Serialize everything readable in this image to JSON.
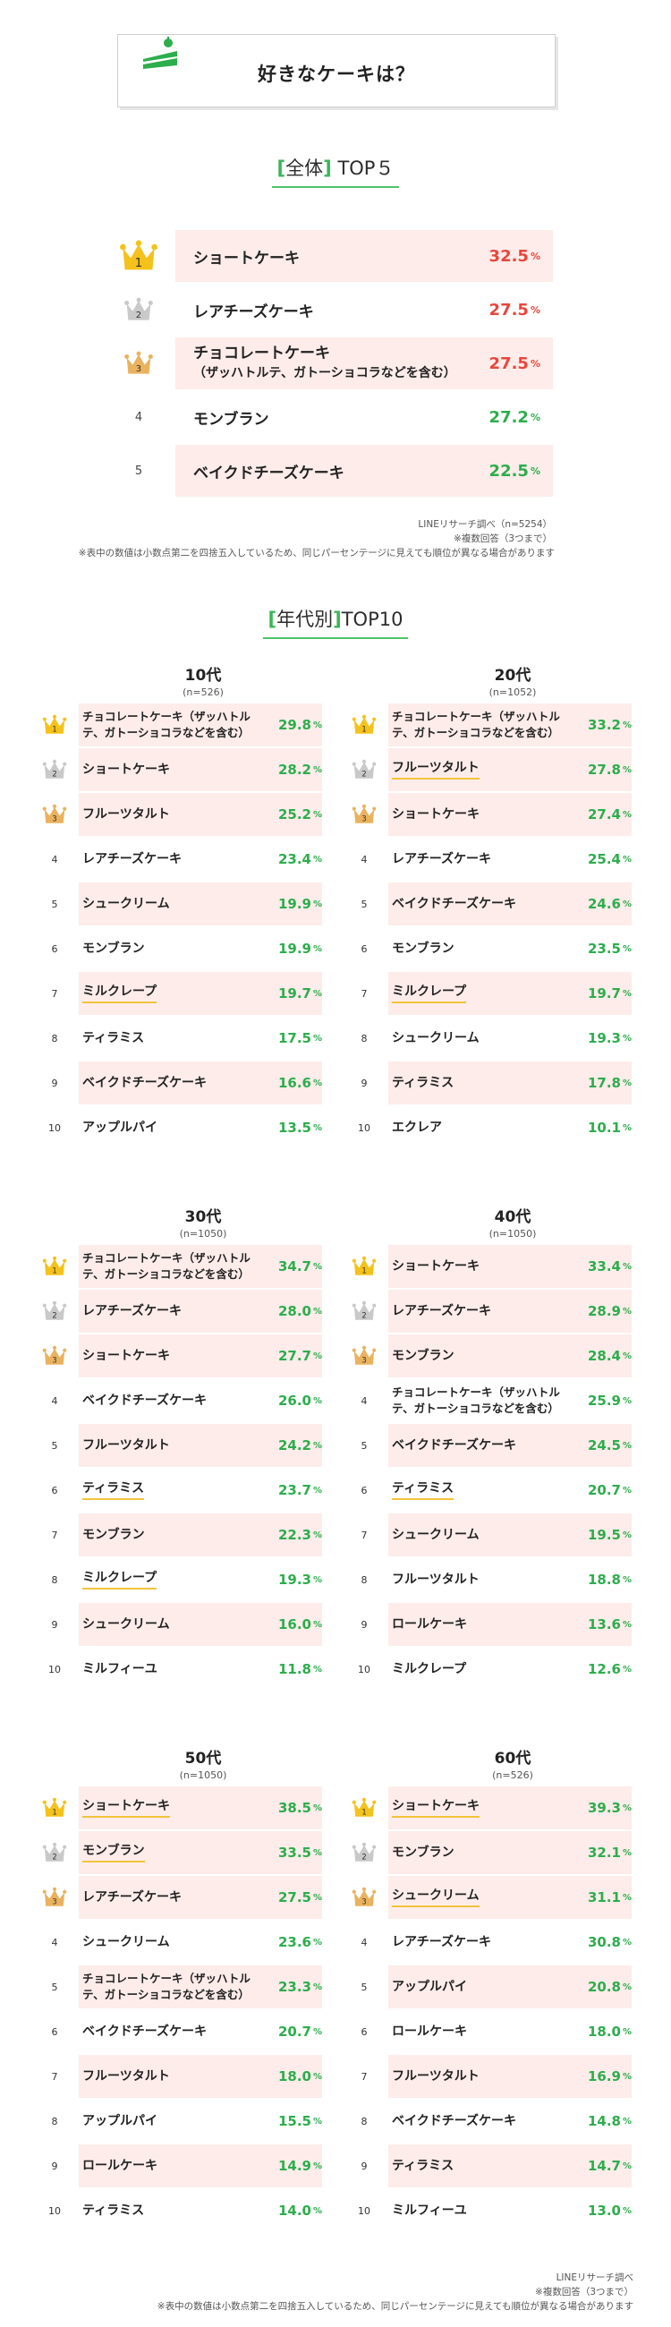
{
  "title": "好きなケーキは？",
  "overall": {
    "heading_open": "[",
    "heading_word": "全体",
    "heading_close": "]",
    "heading_rest": "TOP５",
    "rows": [
      {
        "rank": "1",
        "name": "ショートケーキ",
        "sub": "",
        "value": "32.5",
        "color": "red"
      },
      {
        "rank": "2",
        "name": "レアチーズケーキ",
        "sub": "",
        "value": "27.5",
        "color": "red"
      },
      {
        "rank": "3",
        "name": "チョコレートケーキ",
        "sub": "（ザッハトルテ、ガトーショコラなどを含む）",
        "value": "27.5",
        "color": "red"
      },
      {
        "rank": "4",
        "name": "モンブラン",
        "sub": "",
        "value": "27.2",
        "color": "green"
      },
      {
        "rank": "5",
        "name": "ベイクドチーズケーキ",
        "sub": "",
        "value": "22.5",
        "color": "green"
      }
    ],
    "note1": "LINEリサーチ調べ（n=5254）",
    "note2": "※複数回答（3つまで）",
    "note3": "※表中の数値は小数点第二を四捨五入しているため、同じパーセンテージに見えても順位が異なる場合があります"
  },
  "age": {
    "heading_open": "[",
    "heading_word": "年代別",
    "heading_close": "]",
    "heading_rest": "TOP10",
    "pct_sign": "%",
    "groups": [
      {
        "age": "10代",
        "n": "(n=526)",
        "rows": [
          {
            "name": "チョコレートケーキ（ザッハトルテ、ガトーショコラなどを含む）",
            "value": "29.8",
            "ul": false
          },
          {
            "name": "ショートケーキ",
            "value": "28.2",
            "ul": false
          },
          {
            "name": "フルーツタルト",
            "value": "25.2",
            "ul": false
          },
          {
            "name": "レアチーズケーキ",
            "value": "23.4",
            "ul": false
          },
          {
            "name": "シュークリーム",
            "value": "19.9",
            "ul": false
          },
          {
            "name": "モンブラン",
            "value": "19.9",
            "ul": false
          },
          {
            "name": "ミルクレープ",
            "value": "19.7",
            "ul": true
          },
          {
            "name": "ティラミス",
            "value": "17.5",
            "ul": false
          },
          {
            "name": "ベイクドチーズケーキ",
            "value": "16.6",
            "ul": false
          },
          {
            "name": "アップルパイ",
            "value": "13.5",
            "ul": false
          }
        ]
      },
      {
        "age": "20代",
        "n": "(n=1052)",
        "rows": [
          {
            "name": "チョコレートケーキ（ザッハトルテ、ガトーショコラなどを含む）",
            "value": "33.2",
            "ul": false
          },
          {
            "name": "フルーツタルト",
            "value": "27.8",
            "ul": true
          },
          {
            "name": "ショートケーキ",
            "value": "27.4",
            "ul": false
          },
          {
            "name": "レアチーズケーキ",
            "value": "25.4",
            "ul": false
          },
          {
            "name": "ベイクドチーズケーキ",
            "value": "24.6",
            "ul": false
          },
          {
            "name": "モンブラン",
            "value": "23.5",
            "ul": false
          },
          {
            "name": "ミルクレープ",
            "value": "19.7",
            "ul": true
          },
          {
            "name": "シュークリーム",
            "value": "19.3",
            "ul": false
          },
          {
            "name": "ティラミス",
            "value": "17.8",
            "ul": false
          },
          {
            "name": "エクレア",
            "value": "10.1",
            "ul": false
          }
        ]
      },
      {
        "age": "30代",
        "n": "(n=1050)",
        "rows": [
          {
            "name": "チョコレートケーキ（ザッハトルテ、ガトーショコラなどを含む）",
            "value": "34.7",
            "ul": false
          },
          {
            "name": "レアチーズケーキ",
            "value": "28.0",
            "ul": false
          },
          {
            "name": "ショートケーキ",
            "value": "27.7",
            "ul": false
          },
          {
            "name": "ベイクドチーズケーキ",
            "value": "26.0",
            "ul": false
          },
          {
            "name": "フルーツタルト",
            "value": "24.2",
            "ul": false
          },
          {
            "name": "ティラミス",
            "value": "23.7",
            "ul": true
          },
          {
            "name": "モンブラン",
            "value": "22.3",
            "ul": false
          },
          {
            "name": "ミルクレープ",
            "value": "19.3",
            "ul": true
          },
          {
            "name": "シュークリーム",
            "value": "16.0",
            "ul": false
          },
          {
            "name": "ミルフィーユ",
            "value": "11.8",
            "ul": false
          }
        ]
      },
      {
        "age": "40代",
        "n": "(n=1050)",
        "rows": [
          {
            "name": "ショートケーキ",
            "value": "33.4",
            "ul": false
          },
          {
            "name": "レアチーズケーキ",
            "value": "28.9",
            "ul": false
          },
          {
            "name": "モンブラン",
            "value": "28.4",
            "ul": false
          },
          {
            "name": "チョコレートケーキ（ザッハトルテ、ガトーショコラなどを含む）",
            "value": "25.9",
            "ul": false
          },
          {
            "name": "ベイクドチーズケーキ",
            "value": "24.5",
            "ul": false
          },
          {
            "name": "ティラミス",
            "value": "20.7",
            "ul": true
          },
          {
            "name": "シュークリーム",
            "value": "19.5",
            "ul": false
          },
          {
            "name": "フルーツタルト",
            "value": "18.8",
            "ul": false
          },
          {
            "name": "ロールケーキ",
            "value": "13.6",
            "ul": false
          },
          {
            "name": "ミルクレープ",
            "value": "12.6",
            "ul": false
          }
        ]
      },
      {
        "age": "50代",
        "n": "(n=1050)",
        "rows": [
          {
            "name": "ショートケーキ",
            "value": "38.5",
            "ul": true
          },
          {
            "name": "モンブラン",
            "value": "33.5",
            "ul": true
          },
          {
            "name": "レアチーズケーキ",
            "value": "27.5",
            "ul": false
          },
          {
            "name": "シュークリーム",
            "value": "23.6",
            "ul": false
          },
          {
            "name": "チョコレートケーキ（ザッハトルテ、ガトーショコラなどを含む）",
            "value": "23.3",
            "ul": false
          },
          {
            "name": "ベイクドチーズケーキ",
            "value": "20.7",
            "ul": false
          },
          {
            "name": "フルーツタルト",
            "value": "18.0",
            "ul": false
          },
          {
            "name": "アップルパイ",
            "value": "15.5",
            "ul": false
          },
          {
            "name": "ロールケーキ",
            "value": "14.9",
            "ul": false
          },
          {
            "name": "ティラミス",
            "value": "14.0",
            "ul": false
          }
        ]
      },
      {
        "age": "60代",
        "n": "(n=526)",
        "rows": [
          {
            "name": "ショートケーキ",
            "value": "39.3",
            "ul": true
          },
          {
            "name": "モンブラン",
            "value": "32.1",
            "ul": false
          },
          {
            "name": "シュークリーム",
            "value": "31.1",
            "ul": true
          },
          {
            "name": "レアチーズケーキ",
            "value": "30.8",
            "ul": false
          },
          {
            "name": "アップルパイ",
            "value": "20.8",
            "ul": false
          },
          {
            "name": "ロールケーキ",
            "value": "18.0",
            "ul": false
          },
          {
            "name": "フルーツタルト",
            "value": "16.9",
            "ul": false
          },
          {
            "name": "ベイクドチーズケーキ",
            "value": "14.8",
            "ul": false
          },
          {
            "name": "ティラミス",
            "value": "14.7",
            "ul": false
          },
          {
            "name": "ミルフィーユ",
            "value": "13.0",
            "ul": false
          }
        ]
      }
    ],
    "note1": "LINEリサーチ調べ",
    "note2": "※複数回答（3つまで）",
    "note3": "※表中の数値は小数点第二を四捨五入しているため、同じパーセンテージに見えても順位が異なる場合があります"
  },
  "colors": {
    "gold": "#f5c21b",
    "silver": "#c9c9c9",
    "bronze": "#eab25f",
    "pink": "#fdecea",
    "red": "#e8463c",
    "green": "#2cae4c",
    "accent": "#38b558"
  }
}
